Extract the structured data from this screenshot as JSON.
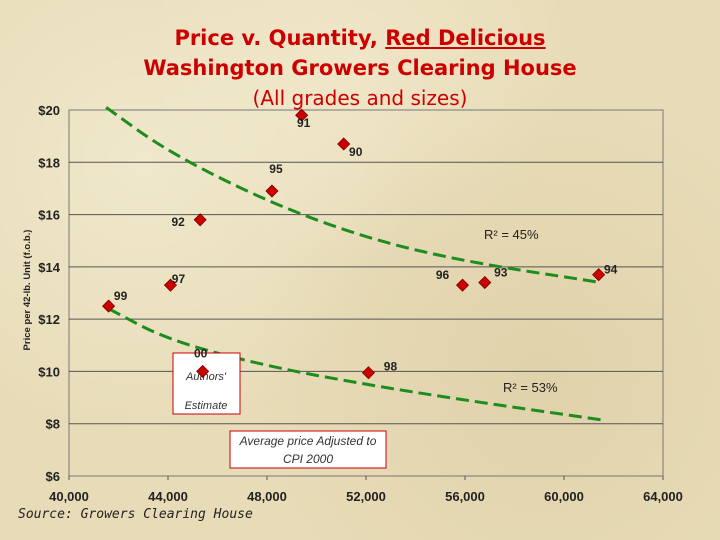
{
  "title": {
    "prefix": "Price v. Quantity, ",
    "highlight": "Red Delicious",
    "line2": "Washington Growers Clearing House",
    "line3": "(All grades and sizes)"
  },
  "source": "Source: Growers Clearing House",
  "chart_data": {
    "type": "scatter",
    "ylabel": "Price per 42-lb. Unit (f.o.b.)",
    "xlabel": "",
    "xlim": [
      40000,
      64000
    ],
    "ylim": [
      6,
      20
    ],
    "xticks": [
      40000,
      44000,
      48000,
      52000,
      56000,
      60000,
      64000
    ],
    "xtick_labels": [
      "40,000",
      "44,000",
      "48,000",
      "52,000",
      "56,000",
      "60,000",
      "64,000"
    ],
    "yticks": [
      6,
      8,
      10,
      12,
      14,
      16,
      18,
      20
    ],
    "ytick_labels": [
      "$6",
      "$8",
      "$10",
      "$12",
      "$14",
      "$16",
      "$18",
      "$20"
    ],
    "points": [
      {
        "label": "99",
        "x": 41600,
        "y": 12.5
      },
      {
        "label": "97",
        "x": 44100,
        "y": 13.3
      },
      {
        "label": "92",
        "x": 45300,
        "y": 15.8
      },
      {
        "label": "95",
        "x": 48200,
        "y": 16.9
      },
      {
        "label": "91",
        "x": 49400,
        "y": 19.8
      },
      {
        "label": "90",
        "x": 51100,
        "y": 18.7
      },
      {
        "label": "96",
        "x": 55900,
        "y": 13.3
      },
      {
        "label": "93",
        "x": 56800,
        "y": 13.4
      },
      {
        "label": "94",
        "x": 61400,
        "y": 13.7
      },
      {
        "label": "00",
        "x": 45400,
        "y": 10.0
      },
      {
        "label": "98",
        "x": 52100,
        "y": 9.95
      }
    ],
    "trendlines": [
      {
        "name": "R² = 45%",
        "points": [
          [
            41500,
            20.1
          ],
          [
            44000,
            18.4
          ],
          [
            48000,
            16.5
          ],
          [
            52000,
            15.1
          ],
          [
            56000,
            14.2
          ],
          [
            61500,
            13.4
          ]
        ]
      },
      {
        "name": "R² = 53%",
        "points": [
          [
            41600,
            12.4
          ],
          [
            44000,
            11.2
          ],
          [
            48000,
            10.2
          ],
          [
            52000,
            9.5
          ],
          [
            56000,
            8.9
          ],
          [
            61500,
            8.15
          ]
        ]
      }
    ],
    "r2_labels": [
      "R² = 45%",
      "R² = 53%"
    ],
    "annotations": [
      "Authors' Estimate",
      "Average price Adjusted to CPI 2000"
    ],
    "colors": {
      "marker": "#cc0000",
      "trend": "#1e8c1e",
      "title": "#cc0000",
      "box_border": "#cc0000"
    }
  }
}
